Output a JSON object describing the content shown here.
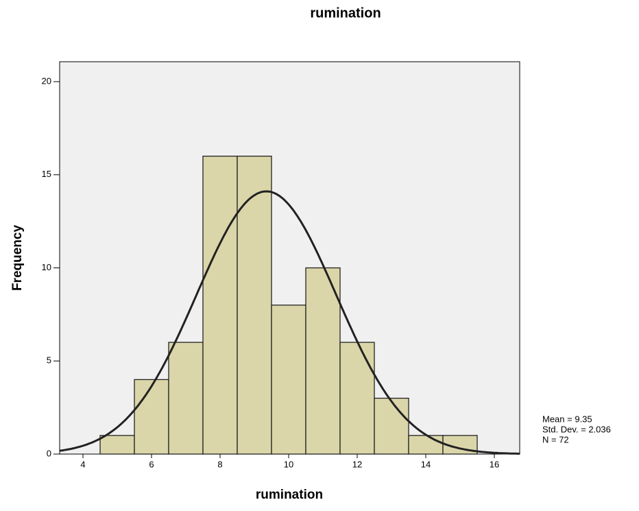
{
  "chart_data": {
    "type": "histogram",
    "title": "rumination",
    "x_label": "rumination",
    "y_label": "Frequency",
    "bins": [
      4.5,
      5.5,
      6.5,
      7.5,
      8.5,
      9.5,
      10.5,
      11.5,
      12.5,
      13.5,
      14.5,
      15.5
    ],
    "values": [
      1,
      4,
      6,
      16,
      16,
      8,
      10,
      6,
      3,
      1,
      1
    ],
    "color": "#dad6a9",
    "edge_color": "#222222",
    "curve_color": "#222222",
    "background": "#f0f0f0",
    "xlim": [
      3.32,
      16.74
    ],
    "xticks": [
      4,
      6,
      8,
      10,
      12,
      14,
      16
    ],
    "ylim": [
      0,
      21.07
    ],
    "yticks": [
      0,
      5,
      10,
      15,
      20
    ],
    "stats": [
      {
        "value": 9.35,
        "label": "Mean = 9.35"
      },
      {
        "value": 2.036,
        "label": "Std. Dev. = 2.036"
      },
      {
        "value": 72,
        "label": "N = 72"
      }
    ]
  }
}
